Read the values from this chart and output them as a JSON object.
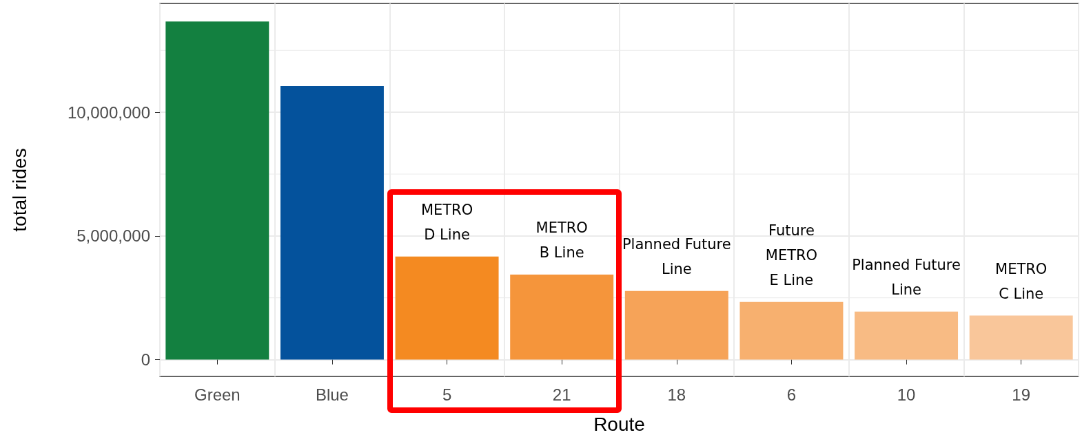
{
  "chart_data": {
    "type": "bar",
    "xlabel": "Route",
    "ylabel": "total rides",
    "categories": [
      "Green",
      "Blue",
      "5",
      "21",
      "18",
      "6",
      "10",
      "19"
    ],
    "values": [
      13670000,
      11060000,
      4170000,
      3440000,
      2780000,
      2330000,
      1940000,
      1780000
    ],
    "colors": [
      "#138040",
      "#04529c",
      "#f48a21",
      "#f5953b",
      "#f6a358",
      "#f7b06f",
      "#f8bb84",
      "#f9c69a"
    ],
    "ylim": [
      -680000,
      14400000
    ],
    "yticks": [
      0,
      {
        "value": 2500000,
        "label": null
      },
      {
        "value": 5000000,
        "label": "5,000,000"
      },
      {
        "value": 7500000,
        "label": null
      },
      {
        "value": 10000000,
        "label": "10,000,000"
      },
      {
        "value": 12500000,
        "label": null
      }
    ],
    "grid": true,
    "annotations": [
      {
        "text": "METRO\nD Line",
        "x": "5",
        "y": 4170000
      },
      {
        "text": "METRO\nB Line",
        "x": "21",
        "y": 3440000
      },
      {
        "text": "Planned Future\nLine",
        "x": "18",
        "y": 2780000
      },
      {
        "text": "Future\nMETRO\nE Line",
        "x": "6",
        "y": 2330000
      },
      {
        "text": "Planned Future\nLine",
        "x": "10",
        "y": 1940000
      },
      {
        "text": "METRO\nC Line",
        "x": "19",
        "y": 1780000
      }
    ]
  }
}
